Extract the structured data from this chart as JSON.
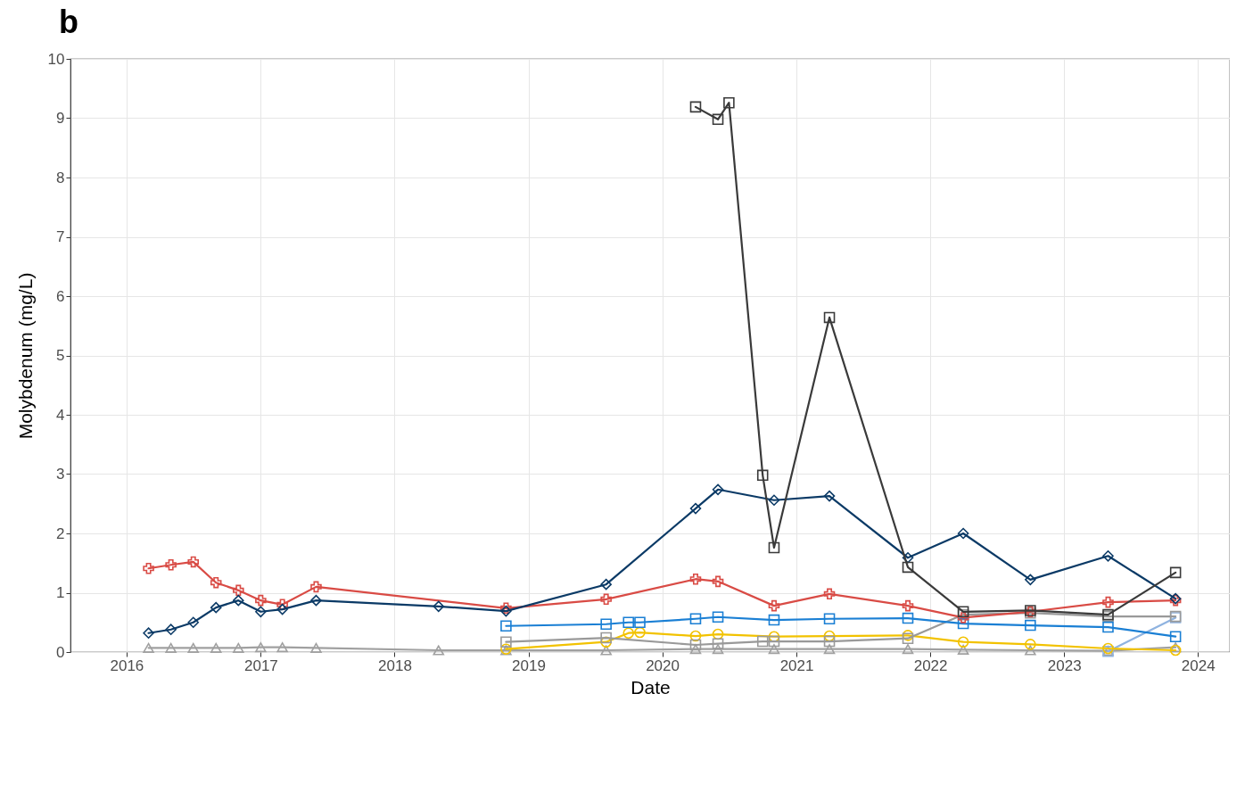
{
  "chart_data": {
    "type": "line",
    "title": "b",
    "xlabel": "Date",
    "ylabel": "Molybdenum (mg/L)",
    "xlim": [
      "2015-08",
      "2024-03-28"
    ],
    "xticks": [
      "2016",
      "2017",
      "2018",
      "2019",
      "2020",
      "2021",
      "2022",
      "2023",
      "2024"
    ],
    "ylim": [
      0,
      10
    ],
    "yticks": [
      0,
      1,
      2,
      3,
      4,
      5,
      6,
      7,
      8,
      9,
      10
    ],
    "grid": true,
    "series": [
      {
        "color": "#a0a0a0",
        "marker": "triangle",
        "x": [
          "2016-03",
          "2016-05",
          "2016-07",
          "2016-09",
          "2016-11",
          "2017-01",
          "2017-03",
          "2017-06",
          "2018-05",
          "2018-11",
          "2019-08",
          "2020-04",
          "2020-06",
          "2020-11",
          "2021-04",
          "2021-11",
          "2022-04",
          "2022-10",
          "2023-05",
          "2023-11"
        ],
        "values": [
          0.07,
          0.07,
          0.07,
          0.07,
          0.07,
          0.08,
          0.08,
          0.07,
          0.03,
          0.03,
          0.03,
          0.05,
          0.05,
          0.05,
          0.05,
          0.05,
          0.04,
          0.03,
          0.02,
          0.08
        ]
      },
      {
        "color": "#8fb3e0",
        "marker": "square",
        "x": [
          "2023-05",
          "2023-11"
        ],
        "values": [
          0.01,
          0.58
        ]
      },
      {
        "color": "#f2c200",
        "marker": "circle",
        "x": [
          "2018-11",
          "2019-08",
          "2019-10",
          "2019-11",
          "2020-04",
          "2020-06",
          "2020-11",
          "2021-04",
          "2021-11",
          "2022-04",
          "2022-10",
          "2023-05",
          "2023-11"
        ],
        "values": [
          0.05,
          0.17,
          0.32,
          0.33,
          0.27,
          0.3,
          0.26,
          0.27,
          0.28,
          0.17,
          0.13,
          0.06,
          0.03
        ]
      },
      {
        "color": "#999999",
        "marker": "square",
        "x": [
          "2018-11",
          "2019-08",
          "2020-04",
          "2020-06",
          "2020-10",
          "2020-11",
          "2021-04",
          "2021-11",
          "2022-04",
          "2022-10",
          "2023-05",
          "2023-11"
        ],
        "values": [
          0.17,
          0.24,
          0.12,
          0.14,
          0.18,
          0.18,
          0.18,
          0.23,
          0.63,
          0.66,
          0.6,
          0.6
        ]
      },
      {
        "color": "#1a7fd4",
        "marker": "square",
        "x": [
          "2018-11",
          "2019-08",
          "2019-10",
          "2019-11",
          "2020-04",
          "2020-06",
          "2020-11",
          "2021-04",
          "2021-11",
          "2022-04",
          "2022-10",
          "2023-05",
          "2023-11"
        ],
        "values": [
          0.44,
          0.47,
          0.5,
          0.5,
          0.56,
          0.59,
          0.54,
          0.56,
          0.57,
          0.48,
          0.45,
          0.42,
          0.26
        ]
      },
      {
        "color": "#d94b45",
        "marker": "cross",
        "x": [
          "2016-03",
          "2016-05",
          "2016-07",
          "2016-09",
          "2016-11",
          "2017-01",
          "2017-03",
          "2017-06",
          "2018-11",
          "2019-08",
          "2020-04",
          "2020-06",
          "2020-11",
          "2021-04",
          "2021-11",
          "2022-04",
          "2022-10",
          "2023-05",
          "2023-11"
        ],
        "values": [
          1.41,
          1.47,
          1.52,
          1.17,
          1.04,
          0.87,
          0.8,
          1.1,
          0.74,
          0.89,
          1.23,
          1.19,
          0.78,
          0.98,
          0.78,
          0.58,
          0.68,
          0.84,
          0.87
        ]
      },
      {
        "color": "#0b3a66",
        "marker": "diamond",
        "x": [
          "2016-03",
          "2016-05",
          "2016-07",
          "2016-09",
          "2016-11",
          "2017-01",
          "2017-03",
          "2017-06",
          "2018-05",
          "2018-11",
          "2019-08",
          "2020-04",
          "2020-06",
          "2020-11",
          "2021-04",
          "2021-11",
          "2022-04",
          "2022-10",
          "2023-05",
          "2023-11"
        ],
        "values": [
          0.32,
          0.38,
          0.5,
          0.75,
          0.87,
          0.68,
          0.72,
          0.87,
          0.77,
          0.69,
          1.14,
          2.42,
          2.74,
          2.56,
          2.63,
          1.59,
          2.0,
          1.22,
          1.62,
          0.9
        ]
      },
      {
        "color": "#3a3a3a",
        "marker": "square",
        "x": [
          "2020-04",
          "2020-06",
          "2020-07",
          "2020-10",
          "2020-11",
          "2021-04",
          "2021-11",
          "2022-04",
          "2022-10",
          "2023-05",
          "2023-11"
        ],
        "values": [
          9.19,
          8.98,
          9.26,
          2.98,
          1.76,
          5.64,
          1.43,
          0.68,
          0.7,
          0.63,
          1.34
        ]
      }
    ]
  }
}
